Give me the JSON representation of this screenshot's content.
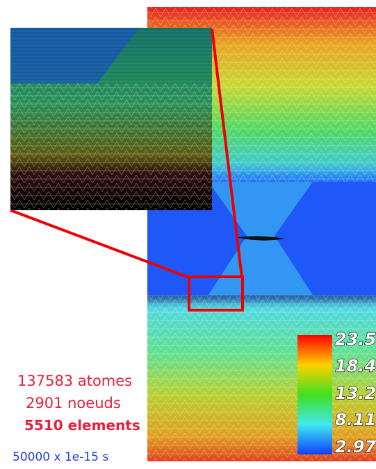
{
  "stats": {
    "atoms": "137583 atomes",
    "nodes": "2901 noeuds",
    "elements": "5510 elements",
    "time": "50000 x 1e-15 s"
  },
  "colorbar": {
    "ticks": [
      23.5,
      18.4,
      13.2,
      8.11,
      2.97
    ]
  }
}
